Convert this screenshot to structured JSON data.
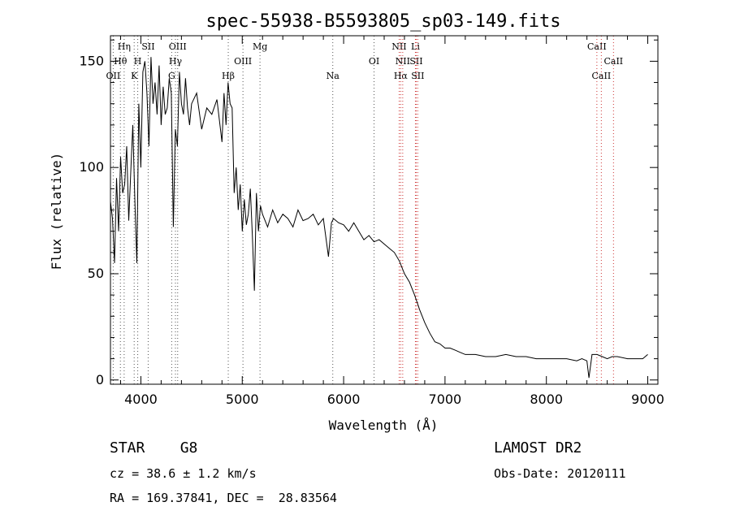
{
  "chart_data": {
    "type": "line",
    "title": "spec-55938-B5593805_sp03-149.fits",
    "xlabel": "Wavelength (Å)",
    "ylabel": "Flux (relative)",
    "xlim": [
      3700,
      9100
    ],
    "ylim": [
      -2,
      162
    ],
    "x_ticks": [
      4000,
      5000,
      6000,
      7000,
      8000,
      9000
    ],
    "y_ticks": [
      0,
      50,
      100,
      150
    ],
    "grid": false,
    "series": [
      {
        "x": [
          3700,
          3720,
          3740,
          3760,
          3780,
          3800,
          3820,
          3840,
          3860,
          3880,
          3900,
          3920,
          3940,
          3960,
          3980,
          4000,
          4020,
          4040,
          4060,
          4080,
          4100,
          4120,
          4140,
          4160,
          4180,
          4200,
          4220,
          4240,
          4260,
          4280,
          4300,
          4320,
          4340,
          4360,
          4380,
          4400,
          4420,
          4440,
          4460,
          4480,
          4500,
          4550,
          4600,
          4650,
          4700,
          4750,
          4800,
          4820,
          4840,
          4860,
          4880,
          4900,
          4920,
          4940,
          4960,
          4980,
          5000,
          5020,
          5040,
          5060,
          5080,
          5100,
          5120,
          5140,
          5160,
          5180,
          5200,
          5250,
          5300,
          5350,
          5400,
          5450,
          5500,
          5550,
          5600,
          5650,
          5700,
          5750,
          5800,
          5850,
          5880,
          5900,
          5950,
          6000,
          6050,
          6100,
          6150,
          6200,
          6250,
          6300,
          6350,
          6400,
          6450,
          6500,
          6550,
          6600,
          6650,
          6700,
          6750,
          6800,
          6850,
          6900,
          6950,
          7000,
          7050,
          7100,
          7150,
          7200,
          7300,
          7400,
          7500,
          7600,
          7700,
          7800,
          7900,
          8000,
          8100,
          8200,
          8300,
          8350,
          8400,
          8420,
          8450,
          8500,
          8550,
          8600,
          8650,
          8700,
          8800,
          8900,
          8950,
          9000
        ],
        "y": [
          84,
          76,
          55,
          95,
          70,
          105,
          88,
          92,
          110,
          75,
          98,
          120,
          85,
          55,
          130,
          100,
          145,
          150,
          135,
          110,
          152,
          130,
          140,
          125,
          148,
          120,
          138,
          125,
          128,
          142,
          135,
          72,
          118,
          110,
          145,
          130,
          125,
          142,
          128,
          120,
          130,
          135,
          118,
          128,
          125,
          132,
          112,
          135,
          120,
          140,
          130,
          128,
          88,
          100,
          80,
          92,
          70,
          85,
          73,
          78,
          90,
          68,
          42,
          88,
          70,
          82,
          78,
          72,
          80,
          74,
          78,
          76,
          72,
          80,
          75,
          76,
          78,
          73,
          76,
          58,
          74,
          76,
          74,
          73,
          70,
          74,
          70,
          66,
          68,
          65,
          66,
          64,
          62,
          60,
          56,
          50,
          46,
          40,
          33,
          27,
          22,
          18,
          17,
          15,
          15,
          14,
          13,
          12,
          12,
          11,
          11,
          12,
          11,
          11,
          10,
          10,
          10,
          10,
          9,
          10,
          9,
          1,
          12,
          12,
          11,
          10,
          11,
          11,
          10,
          10,
          10,
          12
        ]
      }
    ],
    "lines": [
      {
        "w": 3727,
        "label": "OII",
        "row": 3
      },
      {
        "w": 3798,
        "label": "Hθ",
        "row": 2
      },
      {
        "w": 3835,
        "label": "Hη",
        "row": 1
      },
      {
        "w": 3934,
        "label": "K",
        "row": 3
      },
      {
        "w": 3969,
        "label": "H",
        "row": 2
      },
      {
        "w": 4072,
        "label": "SII",
        "row": 1
      },
      {
        "w": 4304,
        "label": "G",
        "row": 3
      },
      {
        "w": 4341,
        "label": "Hγ",
        "row": 2
      },
      {
        "w": 4363,
        "label": "OIII",
        "row": 1
      },
      {
        "w": 4862,
        "label": "Hβ",
        "row": 3
      },
      {
        "w": 5007,
        "label": "OIII",
        "row": 2
      },
      {
        "w": 5175,
        "label": "Mg",
        "row": 1
      },
      {
        "w": 5893,
        "label": "Na",
        "row": 3
      },
      {
        "w": 6300,
        "label": "OI",
        "row": 2
      },
      {
        "w": 6548,
        "label": "NII",
        "row": 1
      },
      {
        "w": 6563,
        "label": "Hα",
        "row": 3
      },
      {
        "w": 6583,
        "label": "NII",
        "row": 2
      },
      {
        "w": 6708,
        "label": "Li",
        "row": 1
      },
      {
        "w": 6716,
        "label": "SII",
        "row": 2
      },
      {
        "w": 6731,
        "label": "SII",
        "row": 3
      },
      {
        "w": 8498,
        "label": "CaII",
        "row": 1
      },
      {
        "w": 8542,
        "label": "CaII",
        "row": 3
      },
      {
        "w": 8662,
        "label": "CaII",
        "row": 2
      }
    ]
  },
  "footer": {
    "class_label": "STAR    G8",
    "survey": "LAMOST DR2",
    "cz": "cz = 38.6 ± 1.2 km/s",
    "obs_date": "Obs-Date: 20120111",
    "coords": "RA = 169.37841, DEC =  28.83564"
  }
}
